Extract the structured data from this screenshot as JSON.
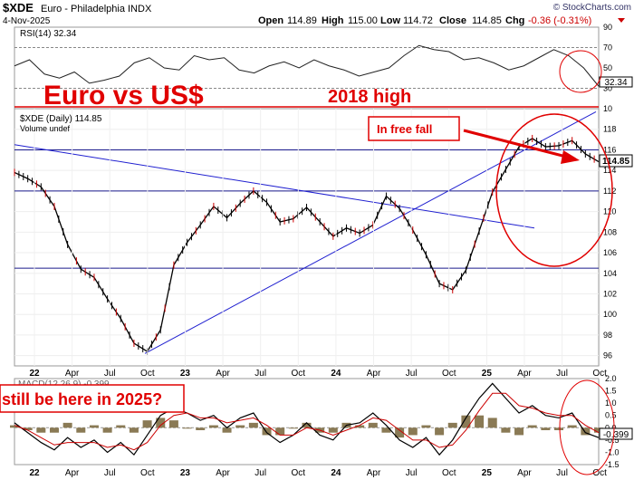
{
  "header": {
    "symbol": "$XDE",
    "description": "Euro - Philadelphia INDX",
    "source": "© StockCharts.com",
    "date": "4-Nov-2025",
    "quote": {
      "open_label": "Open",
      "open": "114.89",
      "high_label": "High",
      "high": "115.00",
      "low_label": "Low",
      "low": "114.72",
      "close_label": "Close",
      "close": "114.85",
      "chg_label": "Chg",
      "chg": "-0.36 (-0.31%)"
    },
    "down_color": "#cc0000"
  },
  "annotations": {
    "title": "Euro vs US$",
    "high_2018": "2018 high",
    "free_fall": "In free fall",
    "question": "still be here in 2025?",
    "color": "#e00000"
  },
  "chart_data": [
    {
      "type": "line",
      "panel": "RSI",
      "title": "RSI(14) 32.34",
      "last_value": "32.34",
      "ylim": [
        10,
        90
      ],
      "ticks": [
        10,
        30,
        50,
        70,
        90
      ],
      "levels": [
        30,
        70
      ],
      "series": [
        {
          "values": [
            52,
            58,
            44,
            40,
            46,
            35,
            38,
            42,
            55,
            60,
            50,
            48,
            62,
            58,
            60,
            48,
            45,
            52,
            56,
            50,
            58,
            52,
            48,
            42,
            46,
            50,
            62,
            72,
            68,
            66,
            58,
            60,
            55,
            48,
            52,
            60,
            68,
            62,
            50,
            32
          ]
        }
      ]
    },
    {
      "type": "candlestick",
      "panel": "price",
      "title": "$XDE (Daily) 114.85",
      "volume_label": "Volume undef",
      "last_value": "114.85",
      "ylim": [
        95,
        120
      ],
      "ticks": [
        96,
        98,
        100,
        102,
        104,
        106,
        108,
        110,
        112,
        114,
        116,
        118
      ],
      "xticks": [
        "22",
        "Apr",
        "Jul",
        "Oct",
        "23",
        "Apr",
        "Jul",
        "Oct",
        "24",
        "Apr",
        "Jul",
        "Oct",
        "25",
        "Apr",
        "Jul",
        "Oct"
      ],
      "series": [
        {
          "values": [
            113.8,
            113.2,
            112.4,
            110.5,
            106.8,
            104.4,
            103.6,
            101.5,
            99.6,
            97.2,
            96.4,
            98.5,
            104.8,
            107.0,
            108.7,
            110.5,
            109.4,
            110.8,
            112.0,
            110.9,
            109.0,
            109.3,
            110.4,
            109.0,
            107.6,
            108.4,
            107.9,
            108.7,
            111.5,
            110.3,
            108.2,
            105.8,
            103.0,
            102.4,
            104.3,
            108.1,
            111.9,
            114.1,
            116.3,
            117.1,
            116.3,
            116.4,
            116.9,
            115.6,
            114.85
          ]
        }
      ],
      "horizontal_lines": [
        116.0,
        112.0,
        104.5
      ],
      "trendlines": [
        {
          "from": [
            "22",
            116.5
          ],
          "to": [
            "Apr 25",
            108.4
          ]
        },
        {
          "from": [
            "Oct 22",
            96.2
          ],
          "to": [
            "Nov 25",
            119.7
          ]
        }
      ]
    },
    {
      "type": "line",
      "panel": "MACD",
      "title": "MACD(12,26,9) -0.399",
      "last_value": "-0.399",
      "ylim": [
        -1.5,
        2.0
      ],
      "ticks": [
        -1.5,
        -1.0,
        -0.5,
        0.0,
        0.5,
        1.0,
        1.5,
        2.0
      ],
      "series": [
        {
          "name": "MACD",
          "values": [
            0.2,
            -0.2,
            -0.6,
            -0.9,
            -0.4,
            -0.8,
            -0.5,
            -1.0,
            -0.6,
            -1.1,
            -0.3,
            0.5,
            0.8,
            0.6,
            0.3,
            0.5,
            0.0,
            0.4,
            0.6,
            -0.2,
            -0.6,
            -0.3,
            0.2,
            -0.3,
            -0.5,
            0.1,
            0.2,
            0.6,
            0.1,
            -0.5,
            -0.8,
            -0.4,
            -1.1,
            -0.5,
            0.4,
            1.2,
            1.8,
            1.2,
            0.6,
            0.9,
            0.5,
            0.4,
            0.6,
            -0.2,
            -0.4
          ]
        },
        {
          "name": "Signal",
          "values": [
            0.1,
            -0.1,
            -0.4,
            -0.7,
            -0.6,
            -0.6,
            -0.6,
            -0.8,
            -0.7,
            -0.9,
            -0.6,
            0.1,
            0.5,
            0.6,
            0.4,
            0.4,
            0.2,
            0.3,
            0.4,
            0.1,
            -0.3,
            -0.3,
            0.0,
            -0.1,
            -0.3,
            -0.1,
            0.1,
            0.4,
            0.3,
            -0.1,
            -0.5,
            -0.5,
            -0.8,
            -0.7,
            -0.1,
            0.7,
            1.4,
            1.4,
            0.9,
            0.8,
            0.6,
            0.5,
            0.5,
            0.1,
            -0.2
          ]
        }
      ]
    }
  ]
}
